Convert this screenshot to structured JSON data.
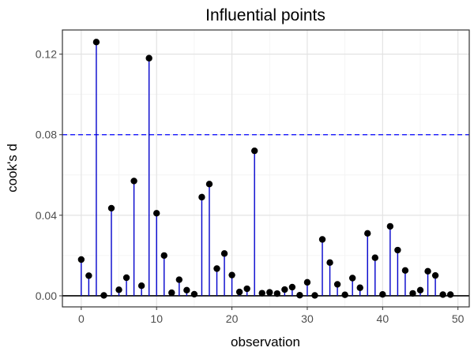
{
  "chart_data": {
    "type": "scatter",
    "title": "Influential points",
    "xlabel": "observation",
    "ylabel": "cook's d",
    "xlim": [
      -2.5,
      51.5
    ],
    "ylim": [
      -0.0055,
      0.132
    ],
    "x_ticks": [
      0,
      10,
      20,
      30,
      40,
      50
    ],
    "x_tick_labels": [
      "0",
      "10",
      "20",
      "30",
      "40",
      "50"
    ],
    "y_ticks": [
      0,
      0.04,
      0.08,
      0.12
    ],
    "y_tick_labels": [
      "0.00",
      "0.04",
      "0.08",
      "0.12"
    ],
    "grid": true,
    "threshold": 0.08,
    "threshold_color": "#0000ff",
    "stem_color": "#0000cc",
    "point_color": "#000000",
    "series": [
      {
        "x": [
          0,
          1,
          2,
          3,
          4,
          5,
          6,
          7,
          8,
          9,
          10,
          11,
          12,
          13,
          14,
          15,
          16,
          17,
          18,
          19,
          20,
          21,
          22,
          23,
          24,
          25,
          26,
          27,
          28,
          29,
          30,
          31,
          32,
          33,
          34,
          35,
          36,
          37,
          38,
          39,
          40,
          41,
          42,
          43,
          44,
          45,
          46,
          47,
          48,
          49
        ],
        "y": [
          0.018,
          0.01,
          0.126,
          0.0002,
          0.0435,
          0.003,
          0.009,
          0.057,
          0.005,
          0.118,
          0.041,
          0.02,
          0.0015,
          0.008,
          0.0028,
          0.0008,
          0.049,
          0.0555,
          0.0135,
          0.021,
          0.0103,
          0.0019,
          0.0035,
          0.072,
          0.0013,
          0.0017,
          0.0011,
          0.0031,
          0.0043,
          0.0003,
          0.0067,
          0.0002,
          0.028,
          0.0165,
          0.0057,
          0.0005,
          0.0088,
          0.004,
          0.031,
          0.0189,
          0.0007,
          0.0345,
          0.0227,
          0.0126,
          0.0012,
          0.0028,
          0.0122,
          0.0101,
          0.0006,
          0.0006
        ]
      }
    ]
  }
}
